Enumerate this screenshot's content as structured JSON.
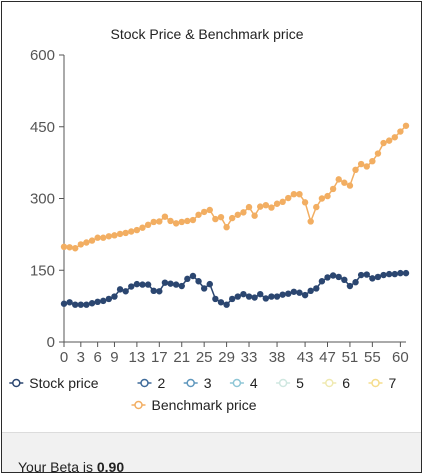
{
  "chart_data": {
    "type": "line",
    "title": "Stock Price & Benchmark price",
    "xlabel": "",
    "ylabel": "",
    "xlim": [
      0,
      61
    ],
    "ylim": [
      0,
      600
    ],
    "yticks": [
      0,
      150,
      300,
      450,
      600
    ],
    "xticks": [
      0,
      3,
      6,
      9,
      13,
      17,
      21,
      25,
      29,
      33,
      38,
      43,
      47,
      51,
      55,
      60
    ],
    "grid": false,
    "legend_position": "bottom",
    "legend_entries": [
      {
        "name": "Stock price",
        "color": "#2b4670"
      },
      {
        "name": "2",
        "color": "#3f6b9a"
      },
      {
        "name": "3",
        "color": "#5f97bd"
      },
      {
        "name": "4",
        "color": "#8ec6d6"
      },
      {
        "name": "5",
        "color": "#cfe7e0"
      },
      {
        "name": "6",
        "color": "#efe9b0"
      },
      {
        "name": "7",
        "color": "#f5dd8c"
      },
      {
        "name": "Benchmark price",
        "color": "#f2ae62"
      }
    ],
    "series": [
      {
        "name": "Stock price",
        "color": "#2b4670",
        "values": [
          80,
          83,
          78,
          78,
          78,
          81,
          84,
          86,
          90,
          95,
          110,
          106,
          116,
          121,
          120,
          120,
          107,
          106,
          124,
          122,
          120,
          117,
          132,
          138,
          127,
          112,
          121,
          90,
          83,
          78,
          90,
          95,
          100,
          95,
          93,
          100,
          91,
          95,
          95,
          99,
          101,
          105,
          103,
          98,
          107,
          112,
          127,
          135,
          139,
          136,
          130,
          117,
          125,
          140,
          141,
          133,
          136,
          140,
          142,
          142,
          144,
          144
        ]
      },
      {
        "name": "Benchmark price",
        "color": "#f2ae62",
        "values": [
          199,
          198,
          196,
          204,
          208,
          212,
          218,
          218,
          221,
          223,
          226,
          228,
          231,
          234,
          239,
          245,
          251,
          252,
          262,
          253,
          248,
          251,
          253,
          255,
          266,
          272,
          276,
          257,
          261,
          240,
          259,
          266,
          271,
          282,
          264,
          283,
          286,
          281,
          289,
          293,
          301,
          309,
          309,
          292,
          252,
          282,
          300,
          305,
          320,
          340,
          333,
          327,
          360,
          372,
          367,
          378,
          394,
          416,
          421,
          428,
          440,
          452
        ]
      }
    ]
  },
  "footer": {
    "beta_label": "Your Beta is",
    "beta_value": "0.90"
  }
}
